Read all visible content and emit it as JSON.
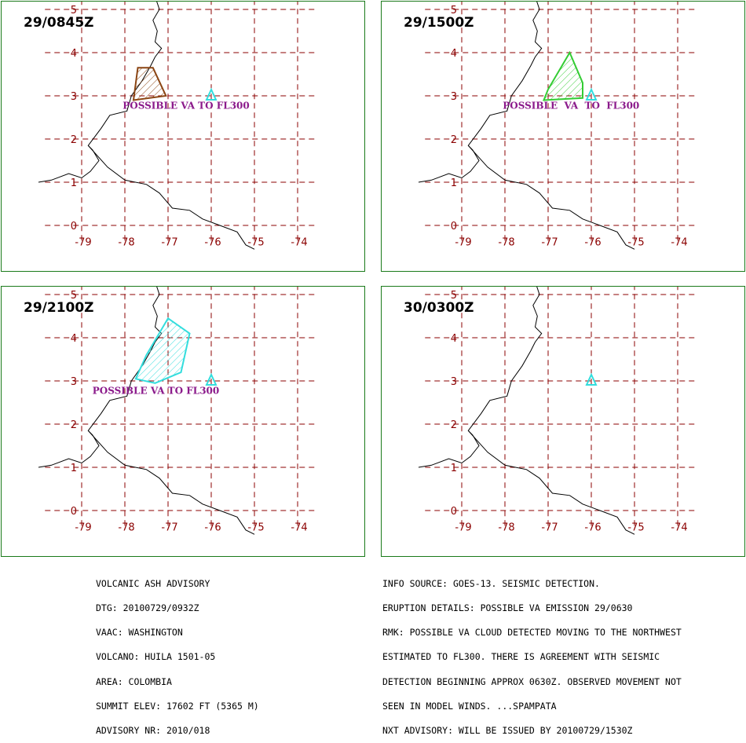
{
  "panels": [
    {
      "time": "29/0845Z",
      "ash": {
        "color": "#8b4513",
        "points": [
          [
            -77.7,
            3.65
          ],
          [
            -77.35,
            3.65
          ],
          [
            -77.05,
            3.0
          ],
          [
            -77.8,
            2.9
          ]
        ]
      },
      "va_label": "POSSIBLE VA TO FL300",
      "va_label_pos": [
        -78.05,
        2.7
      ]
    },
    {
      "time": "29/1500Z",
      "ash": {
        "color": "#33cc33",
        "points": [
          [
            -76.5,
            4.0
          ],
          [
            -76.2,
            3.3
          ],
          [
            -76.2,
            2.95
          ],
          [
            -77.1,
            2.9
          ],
          [
            -77.0,
            3.15
          ]
        ]
      },
      "va_label": "POSSIBLE  VA  TO  FL300",
      "va_label_pos": [
        -78.05,
        2.7
      ]
    },
    {
      "time": "29/2100Z",
      "ash": {
        "color": "#33dddd",
        "points": [
          [
            -77.0,
            4.45
          ],
          [
            -76.5,
            4.1
          ],
          [
            -76.7,
            3.2
          ],
          [
            -77.3,
            2.95
          ],
          [
            -77.75,
            3.05
          ],
          [
            -77.5,
            3.6
          ]
        ]
      },
      "va_label": "POSSIBLE VA TO FL300",
      "va_label_pos": [
        -78.75,
        2.7
      ]
    },
    {
      "time": "30/0300Z",
      "ash": null,
      "va_label": "",
      "va_label_pos": null
    }
  ],
  "map": {
    "x_ticks": [
      "-79",
      "-78",
      "-77",
      "-76",
      "-75",
      "-74"
    ],
    "y_ticks": [
      "0",
      "1",
      "2",
      "3",
      "4",
      "5"
    ],
    "volcano": {
      "lon": -76.0,
      "lat": 3.0,
      "color": "#33dddd"
    },
    "coast_color": "#000000",
    "grid_color": "#8b0000"
  },
  "footer_left": [
    "VOLCANIC ASH ADVISORY",
    "DTG: 20100729/0932Z",
    "VAAC: WASHINGTON",
    "VOLCANO: HUILA 1501-05",
    "AREA: COLOMBIA",
    "SUMMIT ELEV: 17602 FT (5365 M)",
    "ADVISORY NR: 2010/018"
  ],
  "footer_right": [
    "INFO SOURCE: GOES-13. SEISMIC DETECTION.",
    "ERUPTION DETAILS: POSSIBLE VA EMISSION 29/0630",
    "RMK: POSSIBLE VA CLOUD DETECTED MOVING TO THE NORTHWEST",
    "ESTIMATED TO FL300. THERE IS AGREEMENT WITH SEISMIC",
    "DETECTION BEGINNING APPROX 0630Z. OBSERVED MOVEMENT NOT",
    "SEEN IN MODEL WINDS. ...SPAMPATA",
    "NXT ADVISORY: WILL BE ISSUED BY 20100729/1530Z"
  ]
}
